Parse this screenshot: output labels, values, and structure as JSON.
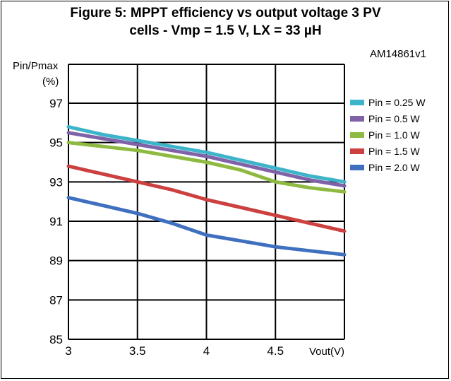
{
  "figure": {
    "title_line1": "Figure 5: MPPT efficiency vs output voltage 3 PV",
    "title_line2": "cells - Vmp = 1.5 V, LX = 33 µH",
    "figure_id": "AM14861v1"
  },
  "chart_data": {
    "type": "line",
    "title": "Figure 5: MPPT efficiency vs output voltage 3 PV cells - Vmp = 1.5 V, LX = 33 µH",
    "ylabel_line1": "Pin/Pmax",
    "ylabel_line2": "(%)",
    "xlabel": "Vout(V)",
    "xlim": [
      3,
      5
    ],
    "ylim": [
      85,
      97
    ],
    "x_ticks": [
      "3",
      "3.5",
      "4",
      "4.5"
    ],
    "y_ticks": [
      "85",
      "87",
      "89",
      "91",
      "93",
      "95",
      "97"
    ],
    "grid": true,
    "legend_position": "right",
    "x": [
      3,
      3.25,
      3.5,
      3.75,
      4,
      4.25,
      4.5,
      4.75,
      5
    ],
    "series": [
      {
        "name": "Pin = 0.25 W",
        "color": "#3db4c9",
        "values": [
          95.8,
          95.4,
          95.1,
          94.8,
          94.5,
          94.1,
          93.7,
          93.3,
          93.0
        ]
      },
      {
        "name": "Pin = 0.5 W",
        "color": "#8062a8",
        "values": [
          95.5,
          95.2,
          94.9,
          94.6,
          94.3,
          93.9,
          93.5,
          93.1,
          92.8
        ]
      },
      {
        "name": "Pin = 1.0 W",
        "color": "#8fba41",
        "values": [
          95.0,
          94.8,
          94.6,
          94.3,
          94.0,
          93.6,
          93.0,
          92.7,
          92.5
        ]
      },
      {
        "name": "Pin = 1.5 W",
        "color": "#cc4040",
        "values": [
          93.8,
          93.4,
          93.0,
          92.6,
          92.1,
          91.7,
          91.3,
          90.9,
          90.5
        ]
      },
      {
        "name": "Pin = 2.0 W",
        "color": "#3f70bf",
        "values": [
          92.2,
          91.8,
          91.4,
          90.9,
          90.3,
          90.0,
          89.7,
          89.5,
          89.3
        ]
      }
    ]
  }
}
